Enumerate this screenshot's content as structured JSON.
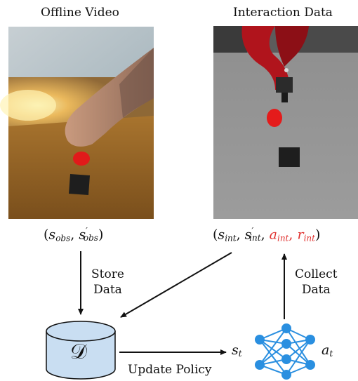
{
  "titles": {
    "left": "Offline Video",
    "right": "Interaction Data"
  },
  "obs_tuple": {
    "open": "(",
    "s": "s",
    "sub1": "obs",
    "comma": ", ",
    "s2": "s",
    "prime": "′",
    "sub2": "obs",
    "close": ")"
  },
  "int_tuple": {
    "open": "(",
    "s": "s",
    "sub1": "int",
    "comma1": ", ",
    "s2": "s",
    "prime": "′",
    "sub2": "int",
    "comma2": ", ",
    "a": "a",
    "sub3": "int",
    "comma3": ", ",
    "r": "r",
    "sub4": "int",
    "close": ")"
  },
  "labels": {
    "store_line1": "Store",
    "store_line2": "Data",
    "collect_line1": "Collect",
    "collect_line2": "Data",
    "update": "Update Policy"
  },
  "database": {
    "symbol": "𝒟"
  },
  "policy": {
    "input": "s",
    "input_sub": "t",
    "output": "a",
    "output_sub": "t"
  },
  "colors": {
    "database_fill": "#c9def2",
    "network_node": "#2a8fe0",
    "network_edge": "#2a8fe0",
    "highlight_text": "#e0312f",
    "arrow": "#111111"
  },
  "icons": {
    "left_image": "human-hand-pushing-red-block-photo",
    "right_image": "red-robot-arm-pushing-red-block-render",
    "database": "database-cylinder-icon",
    "network": "neural-network-icon"
  }
}
